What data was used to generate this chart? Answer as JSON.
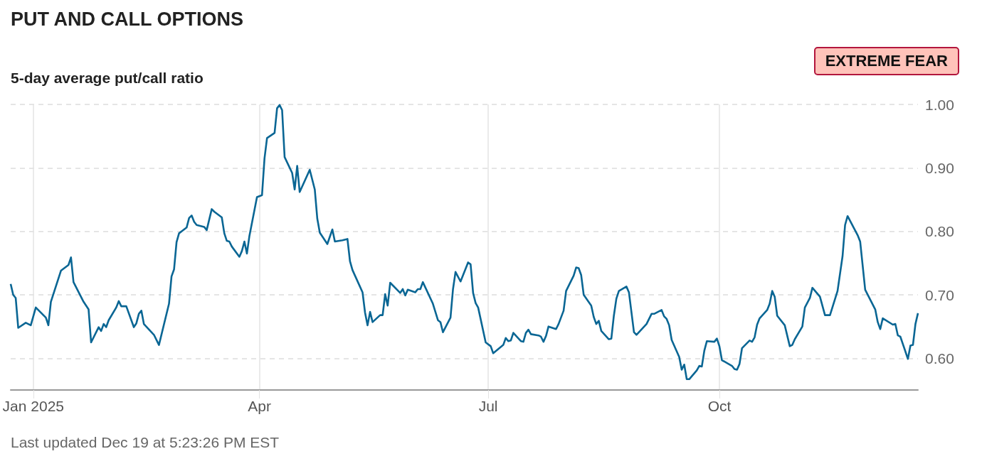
{
  "chart_data": {
    "type": "line",
    "title": "PUT AND CALL OPTIONS",
    "subtitle": "5-day average put/call ratio",
    "annotations": [
      "EXTREME FEAR",
      "Last updated Dec 19 at 5:23:26 PM EST"
    ],
    "xlim": [
      "2024-12-23",
      "2025-12-19"
    ],
    "xticks": [
      {
        "value": "2025-01-01",
        "label": "Jan 2025"
      },
      {
        "value": "2025-04-01",
        "label": "Apr"
      },
      {
        "value": "2025-07-01",
        "label": "Jul"
      },
      {
        "value": "2025-10-01",
        "label": "Oct"
      }
    ],
    "ylim": [
      0.55,
      1.0
    ],
    "yticks": [
      {
        "value": 0.6,
        "label": "0.60"
      },
      {
        "value": 0.7,
        "label": "0.70"
      },
      {
        "value": 0.8,
        "label": "0.80"
      },
      {
        "value": 0.9,
        "label": "0.90"
      },
      {
        "value": 1.0,
        "label": "1.00"
      }
    ],
    "grid": true,
    "marker": "none",
    "line_style": "solid",
    "x": [
      "2024-12-23",
      "2024-12-24",
      "2024-12-25",
      "2024-12-26",
      "2024-12-29",
      "2024-12-31",
      "2025-01-02",
      "2025-01-06",
      "2025-01-07",
      "2025-01-08",
      "2025-01-12",
      "2025-01-15",
      "2025-01-16",
      "2025-01-17",
      "2025-01-21",
      "2025-01-23",
      "2025-01-24",
      "2025-01-27",
      "2025-01-28",
      "2025-01-29",
      "2025-01-30",
      "2025-01-31",
      "2025-02-03",
      "2025-02-04",
      "2025-02-05",
      "2025-02-07",
      "2025-02-10",
      "2025-02-11",
      "2025-02-12",
      "2025-02-13",
      "2025-02-14",
      "2025-02-18",
      "2025-02-20",
      "2025-02-24",
      "2025-02-25",
      "2025-02-26",
      "2025-02-27",
      "2025-02-28",
      "2025-03-03",
      "2025-03-04",
      "2025-03-05",
      "2025-03-06",
      "2025-03-07",
      "2025-03-10",
      "2025-03-11",
      "2025-03-13",
      "2025-03-14",
      "2025-03-17",
      "2025-03-18",
      "2025-03-19",
      "2025-03-20",
      "2025-03-21",
      "2025-03-24",
      "2025-03-25",
      "2025-03-26",
      "2025-03-27",
      "2025-03-28",
      "2025-03-31",
      "2025-04-02",
      "2025-04-03",
      "2025-04-04",
      "2025-04-07",
      "2025-04-08",
      "2025-04-09",
      "2025-04-10",
      "2025-04-11",
      "2025-04-14",
      "2025-04-15",
      "2025-04-16",
      "2025-04-17",
      "2025-04-21",
      "2025-04-23",
      "2025-04-24",
      "2025-04-25",
      "2025-04-28",
      "2025-04-30",
      "2025-05-01",
      "2025-05-04",
      "2025-05-06",
      "2025-05-07",
      "2025-05-08",
      "2025-05-12",
      "2025-05-13",
      "2025-05-14",
      "2025-05-15",
      "2025-05-16",
      "2025-05-19",
      "2025-05-20",
      "2025-05-21",
      "2025-05-22",
      "2025-05-23",
      "2025-05-27",
      "2025-05-28",
      "2025-05-29",
      "2025-05-30",
      "2025-06-02",
      "2025-06-03",
      "2025-06-04",
      "2025-06-05",
      "2025-06-09",
      "2025-06-11",
      "2025-06-12",
      "2025-06-13",
      "2025-06-16",
      "2025-06-17",
      "2025-06-18",
      "2025-06-20",
      "2025-06-23",
      "2025-06-24",
      "2025-06-25",
      "2025-06-26",
      "2025-06-27",
      "2025-06-30",
      "2025-07-02",
      "2025-07-03",
      "2025-07-07",
      "2025-07-08",
      "2025-07-09",
      "2025-07-10",
      "2025-07-11",
      "2025-07-14",
      "2025-07-15",
      "2025-07-16",
      "2025-07-17",
      "2025-07-18",
      "2025-07-21",
      "2025-07-22",
      "2025-07-23",
      "2025-07-24",
      "2025-07-25",
      "2025-07-28",
      "2025-07-29",
      "2025-07-31",
      "2025-08-01",
      "2025-08-04",
      "2025-08-05",
      "2025-08-06",
      "2025-08-07",
      "2025-08-08",
      "2025-08-11",
      "2025-08-12",
      "2025-08-13",
      "2025-08-14",
      "2025-08-15",
      "2025-08-18",
      "2025-08-19",
      "2025-08-20",
      "2025-08-21",
      "2025-08-22",
      "2025-08-25",
      "2025-08-26",
      "2025-08-28",
      "2025-08-29",
      "2025-09-02",
      "2025-09-04",
      "2025-09-05",
      "2025-09-08",
      "2025-09-09",
      "2025-09-10",
      "2025-09-11",
      "2025-09-12",
      "2025-09-15",
      "2025-09-16",
      "2025-09-17",
      "2025-09-18",
      "2025-09-19",
      "2025-09-22",
      "2025-09-23",
      "2025-09-24",
      "2025-09-25",
      "2025-09-26",
      "2025-09-29",
      "2025-09-30",
      "2025-10-01",
      "2025-10-02",
      "2025-10-06",
      "2025-10-07",
      "2025-10-08",
      "2025-10-09",
      "2025-10-10",
      "2025-10-13",
      "2025-10-14",
      "2025-10-15",
      "2025-10-16",
      "2025-10-17",
      "2025-10-20",
      "2025-10-21",
      "2025-10-22",
      "2025-10-23",
      "2025-10-24",
      "2025-10-27",
      "2025-10-29",
      "2025-10-30",
      "2025-10-31",
      "2025-11-03",
      "2025-11-04",
      "2025-11-06",
      "2025-11-07",
      "2025-11-10",
      "2025-11-12",
      "2025-11-14",
      "2025-11-17",
      "2025-11-19",
      "2025-11-20",
      "2025-11-21",
      "2025-11-25",
      "2025-11-26",
      "2025-11-28",
      "2025-12-02",
      "2025-12-03",
      "2025-12-04",
      "2025-12-05",
      "2025-12-09",
      "2025-12-10",
      "2025-12-11",
      "2025-12-12",
      "2025-12-15",
      "2025-12-16",
      "2025-12-17",
      "2025-12-18",
      "2025-12-19"
    ],
    "series": [
      {
        "color": "#0a6694",
        "values": [
          0.717,
          0.7,
          0.695,
          0.648,
          0.656,
          0.652,
          0.68,
          0.664,
          0.652,
          0.689,
          0.738,
          0.747,
          0.759,
          0.72,
          0.689,
          0.677,
          0.625,
          0.649,
          0.643,
          0.654,
          0.649,
          0.66,
          0.68,
          0.69,
          0.682,
          0.682,
          0.649,
          0.655,
          0.67,
          0.675,
          0.654,
          0.637,
          0.621,
          0.686,
          0.729,
          0.74,
          0.783,
          0.797,
          0.806,
          0.821,
          0.825,
          0.815,
          0.81,
          0.807,
          0.802,
          0.835,
          0.831,
          0.822,
          0.797,
          0.785,
          0.784,
          0.776,
          0.76,
          0.769,
          0.784,
          0.765,
          0.793,
          0.854,
          0.857,
          0.915,
          0.947,
          0.955,
          0.994,
          0.999,
          0.991,
          0.917,
          0.892,
          0.866,
          0.903,
          0.862,
          0.897,
          0.866,
          0.82,
          0.798,
          0.78,
          0.803,
          0.784,
          0.786,
          0.788,
          0.753,
          0.739,
          0.704,
          0.672,
          0.652,
          0.673,
          0.657,
          0.668,
          0.668,
          0.701,
          0.683,
          0.719,
          0.703,
          0.709,
          0.699,
          0.708,
          0.704,
          0.709,
          0.709,
          0.72,
          0.686,
          0.66,
          0.657,
          0.641,
          0.664,
          0.709,
          0.736,
          0.721,
          0.751,
          0.748,
          0.703,
          0.687,
          0.68,
          0.625,
          0.619,
          0.608,
          0.621,
          0.632,
          0.627,
          0.628,
          0.64,
          0.627,
          0.626,
          0.64,
          0.645,
          0.638,
          0.636,
          0.634,
          0.626,
          0.635,
          0.65,
          0.646,
          0.654,
          0.675,
          0.706,
          0.73,
          0.743,
          0.742,
          0.731,
          0.7,
          0.683,
          0.665,
          0.654,
          0.659,
          0.643,
          0.63,
          0.631,
          0.667,
          0.694,
          0.706,
          0.713,
          0.704,
          0.641,
          0.637,
          0.654,
          0.67,
          0.67,
          0.676,
          0.666,
          0.662,
          0.652,
          0.629,
          0.602,
          0.582,
          0.59,
          0.567,
          0.567,
          0.581,
          0.588,
          0.587,
          0.612,
          0.627,
          0.626,
          0.631,
          0.619,
          0.597,
          0.588,
          0.583,
          0.582,
          0.591,
          0.616,
          0.628,
          0.626,
          0.633,
          0.653,
          0.663,
          0.676,
          0.686,
          0.706,
          0.697,
          0.667,
          0.652,
          0.619,
          0.621,
          0.63,
          0.65,
          0.68,
          0.695,
          0.711,
          0.697,
          0.668,
          0.668,
          0.706,
          0.761,
          0.81,
          0.824,
          0.794,
          0.784,
          0.708,
          0.677,
          0.657,
          0.646,
          0.663,
          0.653,
          0.654,
          0.636,
          0.634,
          0.599,
          0.62,
          0.621,
          0.654,
          0.671
        ]
      }
    ]
  }
}
